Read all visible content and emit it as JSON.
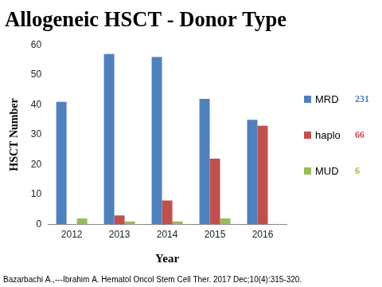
{
  "chart_data": {
    "type": "bar",
    "title": "Allogeneic HSCT - Donor Type",
    "x_label": "Year",
    "y_label": "HSCT Number",
    "categories": [
      "2012",
      "2013",
      "2014",
      "2015",
      "2016"
    ],
    "series": [
      {
        "name": "MRD",
        "color": "#4f81bd",
        "values": [
          41,
          57,
          56,
          42,
          35
        ],
        "total": 231
      },
      {
        "name": "haplo",
        "color": "#c0504d",
        "values": [
          0,
          3,
          8,
          22,
          33
        ],
        "total": 66
      },
      {
        "name": "MUD",
        "color": "#9bbb59",
        "values": [
          2,
          1,
          1,
          2,
          0
        ],
        "total": 6
      }
    ],
    "ylim": [
      0,
      60
    ],
    "yticks": [
      0,
      10,
      20,
      30,
      40,
      50,
      60
    ],
    "grid": false,
    "legend": "right",
    "annotations": [
      "Bazarbachi A.,---Ibrahim A. Hematol Oncol Stem Cell Ther. 2017 Dec;10(4):315-320."
    ]
  }
}
